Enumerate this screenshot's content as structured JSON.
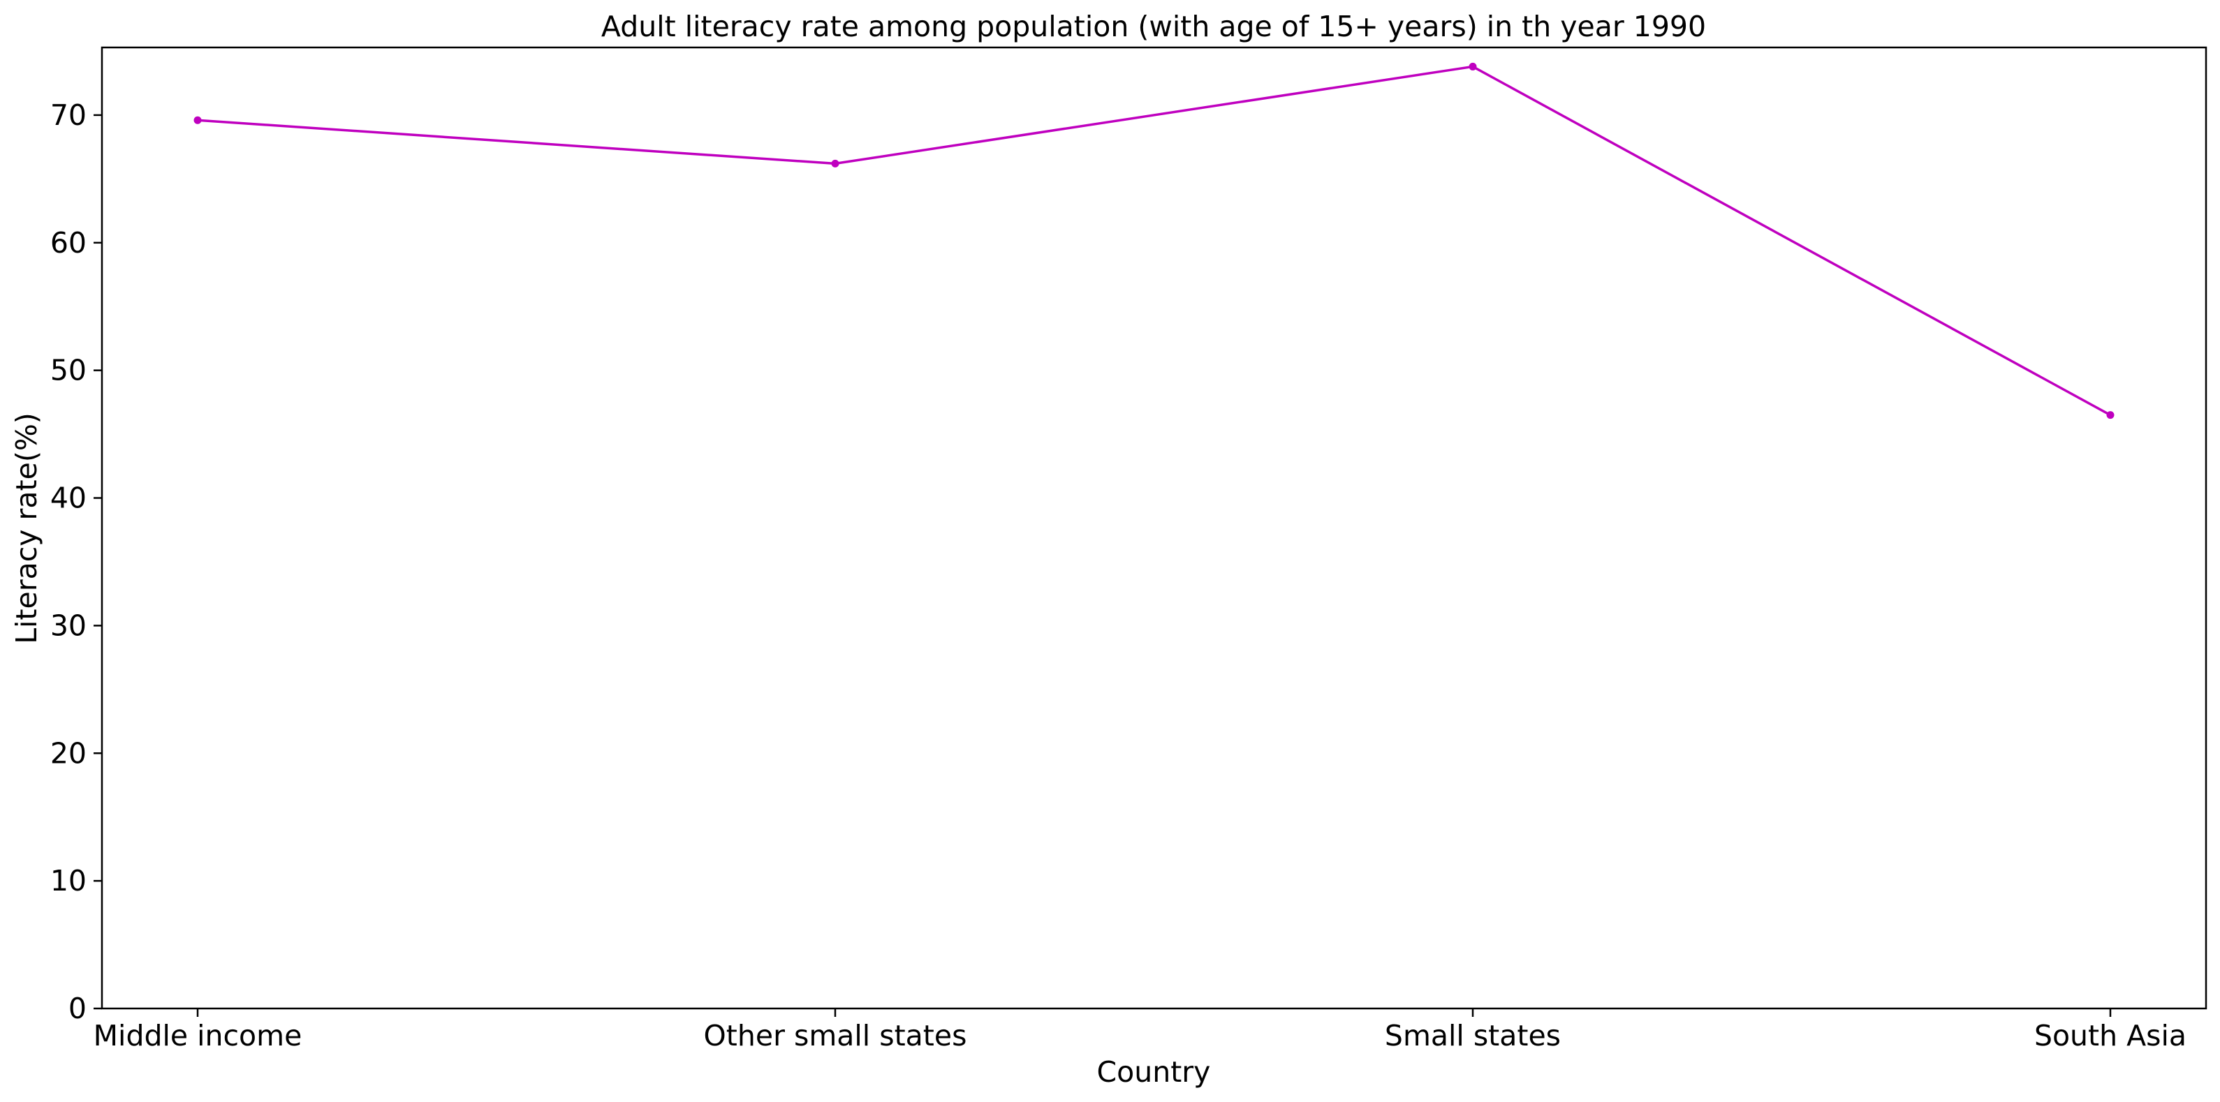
{
  "chart_data": {
    "type": "line",
    "title": "Adult literacy rate among population (with age of 15+ years) in th year 1990",
    "xlabel": "Country",
    "ylabel": "Literacy rate(%)",
    "categories": [
      "Middle income",
      "Other small states",
      "Small states",
      "South Asia"
    ],
    "series": [
      {
        "values": [
          69.6,
          66.2,
          73.8,
          46.5
        ],
        "color": "#bf00bf",
        "marker": "dot"
      }
    ],
    "ylim": [
      0,
      75.3
    ],
    "yticks": [
      0,
      10,
      20,
      30,
      40,
      50,
      60,
      70
    ],
    "grid": false,
    "legend": "none"
  }
}
